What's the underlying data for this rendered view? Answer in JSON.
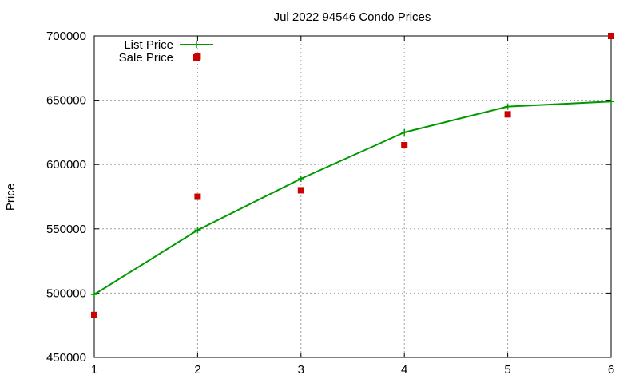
{
  "chart_data": {
    "type": "line",
    "title": "Jul 2022 94546 Condo Prices",
    "xlabel": "",
    "ylabel": "Price",
    "x": [
      1,
      2,
      3,
      4,
      5,
      6
    ],
    "xlim": [
      1,
      6
    ],
    "ylim": [
      450000,
      700000
    ],
    "x_ticks": [
      "1",
      "2",
      "3",
      "4",
      "5",
      "6"
    ],
    "y_ticks": [
      "450000",
      "500000",
      "550000",
      "600000",
      "650000",
      "700000"
    ],
    "y_tick_values": [
      450000,
      500000,
      550000,
      600000,
      650000,
      700000
    ],
    "grid": true,
    "legend_position": "top-left",
    "series": [
      {
        "name": "List Price",
        "style": "line+cross-markers",
        "color": "#009900",
        "values": [
          499000,
          549000,
          589000,
          625000,
          645000,
          649000
        ]
      },
      {
        "name": "Sale Price",
        "style": "square-markers",
        "color": "#cc0000",
        "values": [
          483000,
          575000,
          580000,
          615000,
          639000,
          700000,
          684000
        ],
        "x": [
          1,
          2,
          3,
          4,
          5,
          6,
          2
        ]
      }
    ]
  }
}
